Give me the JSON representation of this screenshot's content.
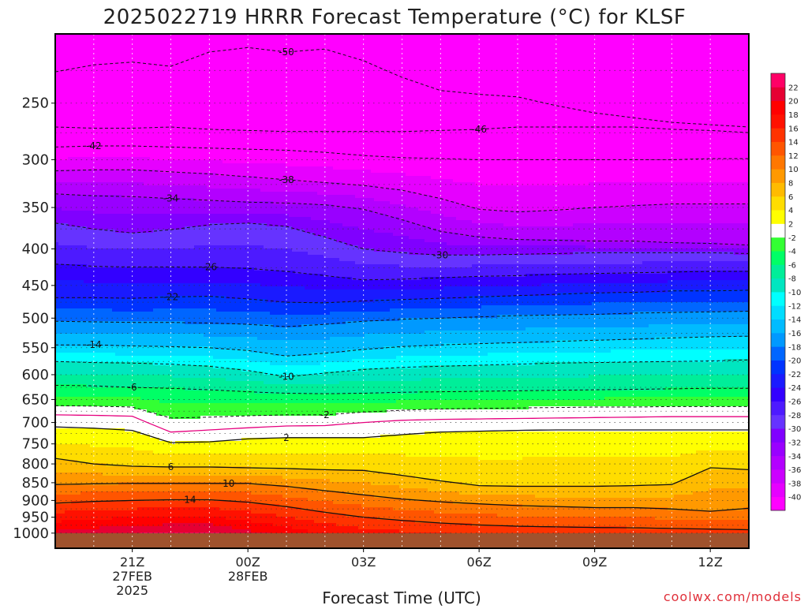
{
  "chart_data": {
    "type": "heatmap",
    "title": "2025022719 HRRR Forecast Temperature (°C) for KLSF",
    "xlabel": "Forecast Time (UTC)",
    "ylabel": "",
    "credit": "coolwx.com/models",
    "x_ticks": [
      {
        "hours": 2,
        "label": "21Z",
        "sub1": "27FEB",
        "sub2": "2025"
      },
      {
        "hours": 5,
        "label": "00Z",
        "sub1": "28FEB",
        "sub2": ""
      },
      {
        "hours": 8,
        "label": "03Z",
        "sub1": "",
        "sub2": ""
      },
      {
        "hours": 11,
        "label": "06Z",
        "sub1": "",
        "sub2": ""
      },
      {
        "hours": 14,
        "label": "09Z",
        "sub1": "",
        "sub2": ""
      },
      {
        "hours": 17,
        "label": "12Z",
        "sub1": "",
        "sub2": ""
      }
    ],
    "xlim": [
      0,
      18
    ],
    "y_scale": "log",
    "y_reversed": true,
    "ylim": [
      1050,
      200
    ],
    "y_ticks": [
      250,
      300,
      350,
      400,
      450,
      500,
      550,
      600,
      650,
      700,
      750,
      800,
      850,
      900,
      950,
      1000
    ],
    "y_dotted_levels": [
      200,
      225,
      250,
      275,
      300,
      325,
      350,
      375,
      400,
      425,
      450,
      475,
      500,
      525,
      550,
      575,
      600,
      625,
      650,
      675,
      700,
      725,
      750,
      775,
      800,
      825,
      850,
      875,
      900,
      925,
      950,
      975,
      1000
    ],
    "hours": [
      0,
      1,
      2,
      3,
      4,
      5,
      6,
      7,
      8,
      9,
      10,
      11,
      12,
      13,
      14,
      15,
      16,
      17,
      18
    ],
    "contours": [
      {
        "value": -50,
        "label": "-50",
        "style": "dashed",
        "label_hour": 6.0,
        "pressure": [
          226,
          221,
          219,
          222,
          212,
          209,
          212,
          210,
          218,
          230,
          240,
          243,
          245,
          252,
          258,
          262,
          266,
          268,
          270
        ]
      },
      {
        "value": -46,
        "label": "-46",
        "style": "dashed",
        "label_hour": 11.0,
        "pressure": [
          270,
          271,
          271,
          270,
          272,
          273,
          274,
          274,
          274,
          274,
          273,
          272,
          270,
          270,
          270,
          270,
          272,
          273,
          275
        ]
      },
      {
        "value": -42,
        "label": "-42",
        "style": "dashed",
        "label_hour": 1.0,
        "pressure": [
          288,
          287,
          287,
          288,
          289,
          290,
          291,
          293,
          296,
          298,
          299,
          300,
          300,
          300,
          300,
          300,
          300,
          299,
          299
        ]
      },
      {
        "value": -38,
        "label": "-38",
        "style": "dashed",
        "label_hour": 6.0,
        "pressure": [
          311,
          310,
          310,
          312,
          314,
          317,
          320,
          323,
          326,
          331,
          340,
          352,
          355,
          353,
          350,
          348,
          346,
          346,
          346
        ]
      },
      {
        "value": -34,
        "label": "-34",
        "style": "dashed",
        "label_hour": 3.0,
        "pressure": [
          335,
          337,
          338,
          340,
          342,
          344,
          345,
          347,
          352,
          364,
          378,
          385,
          388,
          389,
          390,
          390,
          392,
          393,
          395
        ]
      },
      {
        "value": -30,
        "label": "-30",
        "style": "dashed",
        "label_hour": 10.0,
        "pressure": [
          368,
          375,
          380,
          376,
          370,
          368,
          372,
          385,
          400,
          405,
          408,
          408,
          407,
          406,
          405,
          405,
          405,
          405,
          406
        ]
      },
      {
        "value": -26,
        "label": "-26",
        "style": "dashed",
        "label_hour": 4.0,
        "pressure": [
          420,
          423,
          424,
          424,
          424,
          426,
          430,
          436,
          442,
          441,
          439,
          437,
          436,
          434,
          433,
          432,
          431,
          430,
          430
        ]
      },
      {
        "value": -22,
        "label": "-22",
        "style": "dashed",
        "label_hour": 3.0,
        "pressure": [
          468,
          468,
          469,
          467,
          466,
          470,
          475,
          476,
          473,
          471,
          469,
          467,
          465,
          463,
          461,
          460,
          458,
          458,
          457
        ]
      },
      {
        "value": -18,
        "label": "",
        "style": "dashed",
        "label_hour": -1,
        "pressure": [
          505,
          506,
          507,
          507,
          508,
          510,
          514,
          510,
          505,
          502,
          500,
          498,
          496,
          495,
          494,
          492,
          491,
          490,
          489
        ]
      },
      {
        "value": -14,
        "label": "-14",
        "style": "dashed",
        "label_hour": 1.0,
        "pressure": [
          545,
          545,
          547,
          548,
          550,
          555,
          565,
          560,
          553,
          548,
          545,
          543,
          541,
          539,
          537,
          535,
          533,
          531,
          530
        ]
      },
      {
        "value": -10,
        "label": "-10",
        "style": "dashed",
        "label_hour": 6.0,
        "pressure": [
          575,
          577,
          578,
          580,
          584,
          592,
          604,
          597,
          590,
          586,
          584,
          582,
          580,
          578,
          577,
          576,
          575,
          574,
          572
        ]
      },
      {
        "value": -6,
        "label": "-6",
        "style": "dashed",
        "label_hour": 2.0,
        "pressure": [
          621,
          622,
          625,
          627,
          630,
          634,
          637,
          638,
          637,
          635,
          634,
          633,
          632,
          631,
          630,
          629,
          628,
          627,
          627
        ]
      },
      {
        "value": -2,
        "label": "-2",
        "style": "dashed",
        "label_hour": 7.0,
        "pressure": [
          663,
          664,
          666,
          690,
          688,
          685,
          683,
          683,
          677,
          673,
          670,
          669,
          668,
          667,
          666,
          666,
          665,
          665,
          665
        ]
      },
      {
        "value": 0,
        "label": "",
        "style": "solid-magenta",
        "label_hour": -1,
        "pressure": [
          683,
          684,
          686,
          722,
          717,
          712,
          708,
          707,
          700,
          695,
          693,
          692,
          691,
          690,
          689,
          688,
          687,
          687,
          687
        ]
      },
      {
        "value": 2,
        "label": "2",
        "style": "solid",
        "label_hour": 6.0,
        "pressure": [
          710,
          713,
          718,
          747,
          745,
          738,
          735,
          735,
          735,
          728,
          722,
          720,
          718,
          717,
          717,
          717,
          717,
          717,
          717
        ]
      },
      {
        "value": 6,
        "label": "6",
        "style": "solid",
        "label_hour": 3.0,
        "pressure": [
          786,
          800,
          806,
          808,
          808,
          810,
          812,
          815,
          817,
          830,
          845,
          858,
          860,
          860,
          860,
          858,
          855,
          810,
          815
        ]
      },
      {
        "value": 10,
        "label": "10",
        "style": "solid",
        "label_hour": 4.5,
        "pressure": [
          855,
          853,
          852,
          852,
          852,
          852,
          860,
          872,
          884,
          896,
          904,
          910,
          915,
          918,
          921,
          921,
          925,
          932,
          923
        ]
      },
      {
        "value": 14,
        "label": "14",
        "style": "solid",
        "label_hour": 3.5,
        "pressure": [
          908,
          903,
          900,
          898,
          898,
          905,
          918,
          935,
          950,
          960,
          968,
          974,
          978,
          980,
          982,
          983,
          985,
          987,
          989
        ]
      }
    ],
    "colorbar": {
      "boundaries": [
        -42,
        -40,
        -38,
        -36,
        -34,
        -32,
        -30,
        -28,
        -26,
        -24,
        -22,
        -20,
        -18,
        -16,
        -14,
        -12,
        -10,
        -8,
        -6,
        -4,
        -2,
        2,
        4,
        6,
        8,
        10,
        12,
        14,
        16,
        18,
        20,
        22,
        24
      ],
      "colors": [
        "#ff00ff",
        "#e600ff",
        "#cc00ff",
        "#b300ff",
        "#9900ff",
        "#8000ff",
        "#6633ff",
        "#4d1aff",
        "#3300ff",
        "#1a1aff",
        "#0033ff",
        "#0066ff",
        "#0099ff",
        "#00bbff",
        "#00ddff",
        "#00ffff",
        "#00e6c0",
        "#00ee99",
        "#00ff66",
        "#33ff33",
        "#ffffff",
        "#ffff00",
        "#ffdd00",
        "#ffbb00",
        "#ff9900",
        "#ff7700",
        "#ff5500",
        "#ff3300",
        "#ff1100",
        "#ff0000",
        "#e60033",
        "#ff0066"
      ],
      "labels": [
        "-40",
        "-38",
        "-36",
        "-34",
        "-32",
        "-30",
        "-28",
        "-26",
        "-24",
        "-22",
        "-20",
        "-18",
        "-16",
        "-14",
        "-12",
        "-10",
        "-8",
        "-6",
        "-4",
        "-2",
        "2",
        "4",
        "6",
        "8",
        "10",
        "12",
        "14",
        "16",
        "18",
        "20",
        "22"
      ]
    },
    "ground_color": "#a0522d",
    "ground_level": 1000,
    "grid": true
  }
}
